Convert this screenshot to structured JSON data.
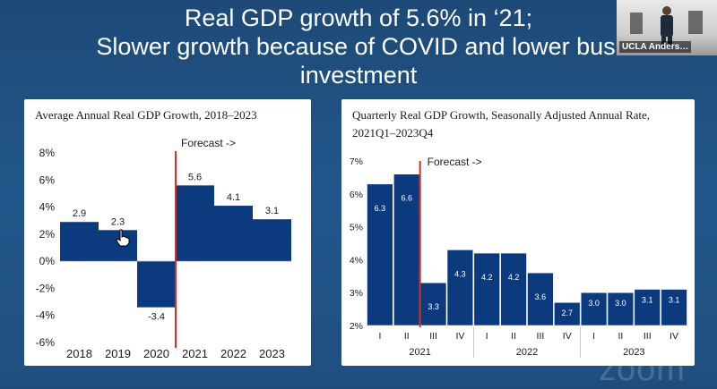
{
  "slide": {
    "title_line1": "Real GDP growth of 5.6% in ‘21;",
    "title_line2": "Slower growth because of COVID and lower busi",
    "title_line3": "investment"
  },
  "video": {
    "participant_name": "UCLA Anders…"
  },
  "watermark": {
    "text": "zoom"
  },
  "colors": {
    "bar": "#0b3a7e",
    "forecast_line": "#d42f24",
    "background": "#1f4d7a"
  },
  "chart_data": [
    {
      "type": "bar",
      "title": "Average Annual Real GDP Growth, 2018–2023",
      "categories": [
        "2018",
        "2019",
        "2020",
        "2021",
        "2022",
        "2023"
      ],
      "values": [
        2.9,
        2.3,
        -3.4,
        5.6,
        4.1,
        3.1
      ],
      "value_labels": [
        "2.9",
        "2.3",
        "-3.4",
        "5.6",
        "4.1",
        "3.1"
      ],
      "ylim": [
        -6,
        8
      ],
      "yticks": [
        -6,
        -4,
        -2,
        0,
        2,
        4,
        6,
        8
      ],
      "ytick_labels": [
        "-6%",
        "-4%",
        "-2%",
        "0%",
        "2%",
        "4%",
        "6%",
        "8%"
      ],
      "forecast_label": "Forecast ->",
      "forecast_after_index": 2,
      "grid": false
    },
    {
      "type": "bar",
      "title_line1": "Quarterly Real GDP Growth, Seasonally Adjusted Annual Rate,",
      "title_line2": "2021Q1–2023Q4",
      "categories": [
        "I",
        "II",
        "III",
        "IV",
        "I",
        "II",
        "III",
        "IV",
        "I",
        "II",
        "III",
        "IV"
      ],
      "values": [
        6.3,
        6.6,
        3.3,
        4.3,
        4.2,
        4.2,
        3.6,
        2.7,
        3.0,
        3.0,
        3.1,
        3.1
      ],
      "value_labels": [
        "6.3",
        "6.6",
        "3.3",
        "4.3",
        "4.2",
        "4.2",
        "3.6",
        "2.7",
        "3.0",
        "3.0",
        "3.1",
        "3.1"
      ],
      "year_groups": [
        "2021",
        "2022",
        "2023"
      ],
      "ylim": [
        2,
        7
      ],
      "yticks": [
        2,
        3,
        4,
        5,
        6,
        7
      ],
      "ytick_labels": [
        "2%",
        "3%",
        "4%",
        "5%",
        "6%",
        "7%"
      ],
      "forecast_label": "Forecast ->",
      "forecast_after_index": 1,
      "grid": false
    }
  ]
}
